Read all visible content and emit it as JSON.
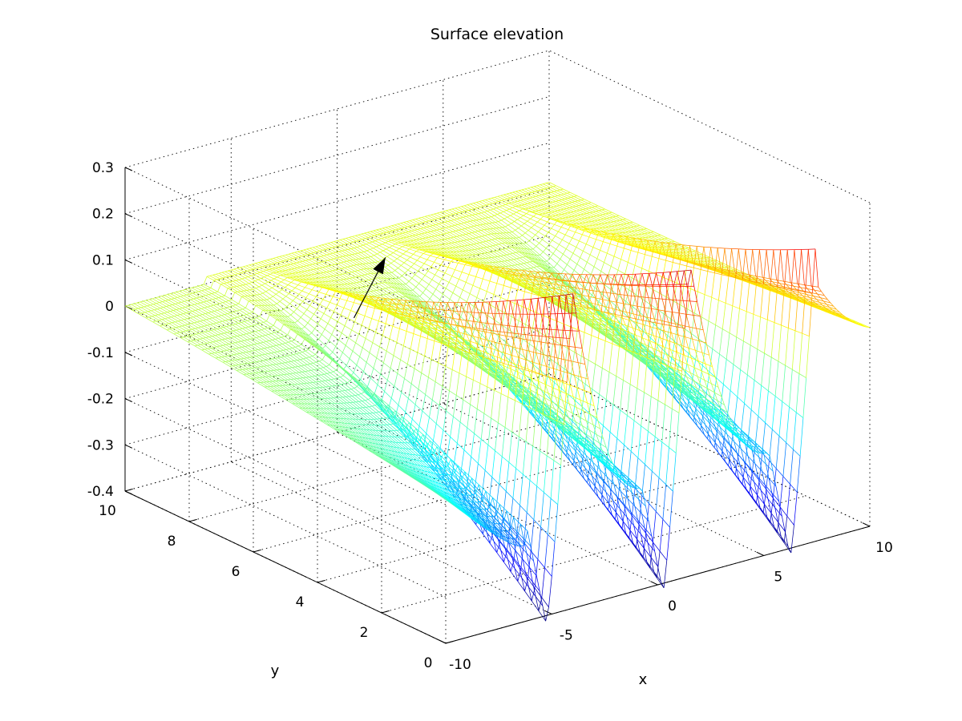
{
  "chart_data": {
    "type": "surface-mesh",
    "title": "Surface elevation",
    "xlabel": "x",
    "ylabel": "y",
    "zlabel": "",
    "xlim": [
      -10,
      10
    ],
    "ylim": [
      0,
      10
    ],
    "zlim": [
      -0.4,
      0.3
    ],
    "x_ticks": [
      -10,
      -5,
      0,
      5,
      10
    ],
    "x_tick_labels": [
      "-10",
      "-5",
      "0",
      "5",
      "10"
    ],
    "y_ticks": [
      0,
      2,
      4,
      6,
      8,
      10
    ],
    "y_tick_labels": [
      "0",
      "2",
      "4",
      "6",
      "8",
      "10"
    ],
    "z_ticks": [
      -0.4,
      -0.3,
      -0.2,
      -0.1,
      0,
      0.1,
      0.2,
      0.3
    ],
    "z_tick_labels": [
      "-0.4",
      "-0.3",
      "-0.2",
      "-0.1",
      "0",
      "0.1",
      "0.2",
      "0.3"
    ],
    "grid": true,
    "colormap": "jet",
    "colormap_range": [
      -0.4,
      0.3
    ],
    "surface": {
      "x_domain": [
        -10,
        10
      ],
      "y_domain": [
        0,
        10
      ],
      "wave_crests_x": [
        -4,
        1.5,
        7.5
      ],
      "crest_elevation": 0.28,
      "trough_elevation": -0.42,
      "still_water_level": 0,
      "front_edge_elevation_at_x_min": -0.25,
      "back_edge_elevation": 0.05
    },
    "annotation": {
      "type": "arrow",
      "meaning": "wave propagation direction",
      "from": [
        -4.5,
        6.5,
        0.02
      ],
      "to": [
        -1.5,
        7.5,
        0.08
      ],
      "color": "#000000"
    }
  }
}
